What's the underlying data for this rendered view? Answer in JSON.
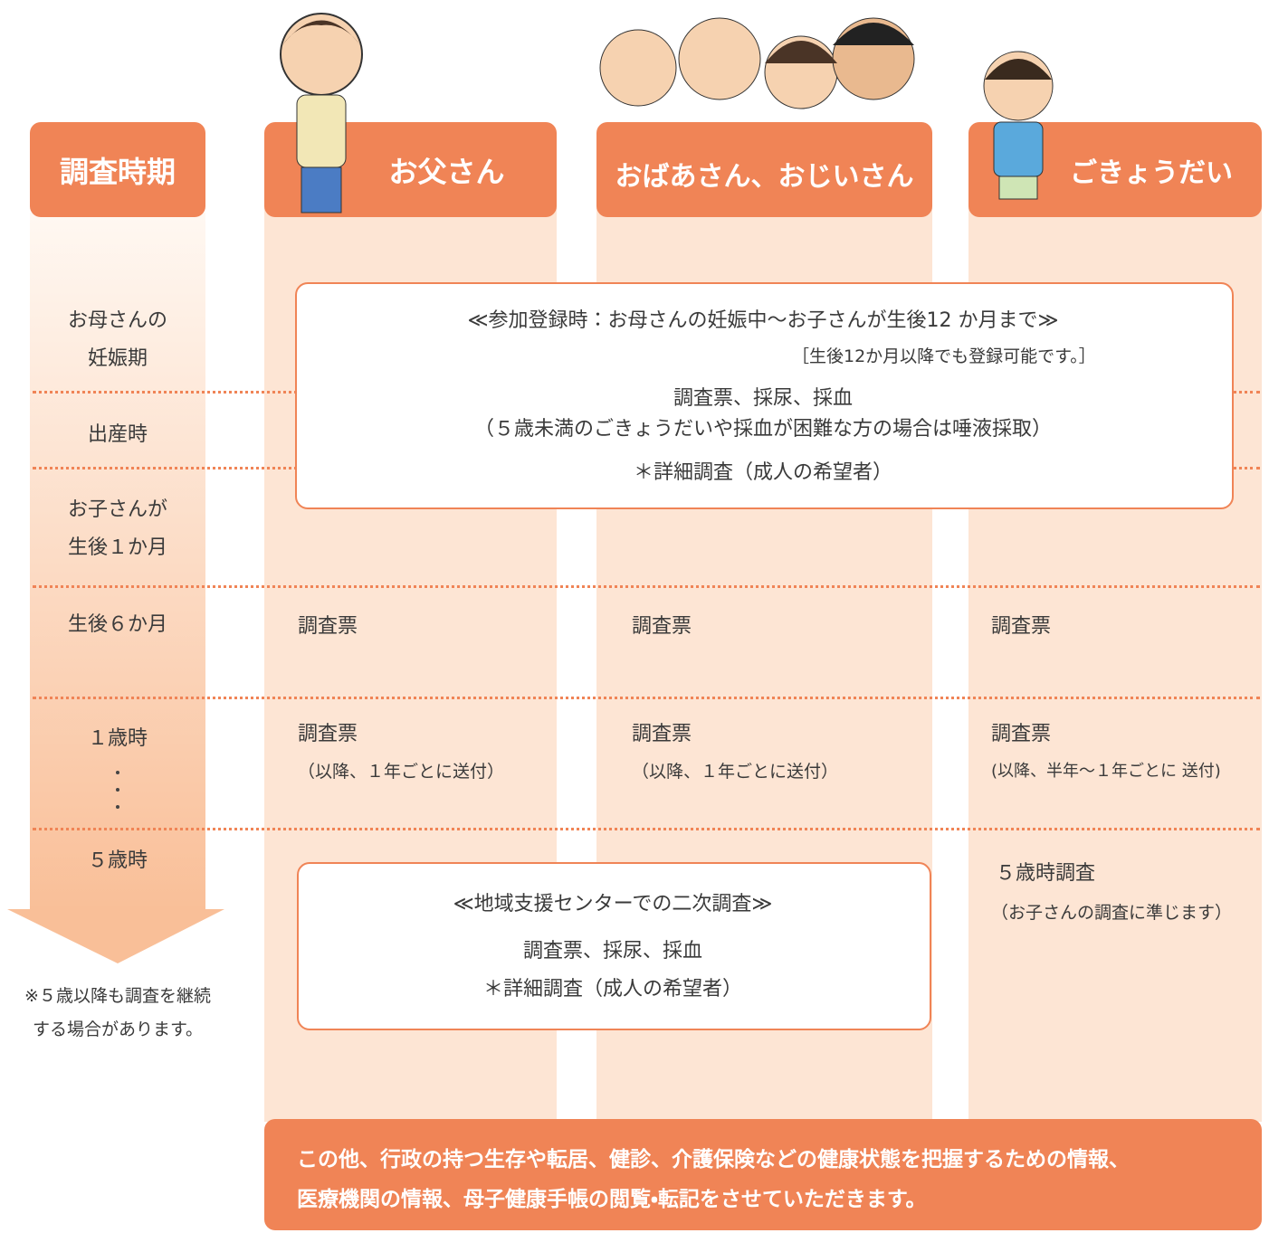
{
  "header": {
    "timeline": "調査時期",
    "columns": [
      "お父さん",
      "おばあさん、おじいさん",
      "ごきょうだい"
    ]
  },
  "timeline": {
    "periods": [
      [
        "お母さんの",
        "妊娠期"
      ],
      [
        "出産時"
      ],
      [
        "お子さんが",
        "生後１か月"
      ],
      [
        "生後６か月"
      ],
      [
        "１歳時"
      ],
      [
        "５歳時"
      ]
    ],
    "note": [
      "※５歳以降も調査を継続",
      "する場合があります。"
    ]
  },
  "registration_box": {
    "title": "≪参加登録時：お母さんの妊娠中～お子さんが生後12 か月まで≫",
    "subtitle": "［生後12か月以降でも登録可能です。］",
    "lines": [
      "調査票、採尿、採血",
      "（５歳未満のごきょうだいや採血が困難な方の場合は唾液採取）",
      "＊詳細調査（成人の希望者）"
    ]
  },
  "six_months": [
    "調査票",
    "調査票",
    "調査票"
  ],
  "one_year": [
    {
      "main": "調査票",
      "sub": "（以降、１年ごとに送付）"
    },
    {
      "main": "調査票",
      "sub": "（以降、１年ごとに送付）"
    },
    {
      "main": "調査票",
      "sub": "(以降、半年～１年ごとに 送付)"
    }
  ],
  "five_years_sibling": {
    "main": "５歳時調査",
    "sub": "（お子さんの調査に準じます）"
  },
  "secondary_box": {
    "title": "≪地域支援センターでの二次調査≫",
    "lines": [
      "調査票、採尿、採血",
      "＊詳細調査（成人の希望者）"
    ]
  },
  "footer": [
    "この他、行政の持つ生存や転居、健診、介護保険などの健康状態を把握するための情報、",
    "医療機関の情報、母子健康手帳の閲覧・転記をさせていただきます。"
  ]
}
